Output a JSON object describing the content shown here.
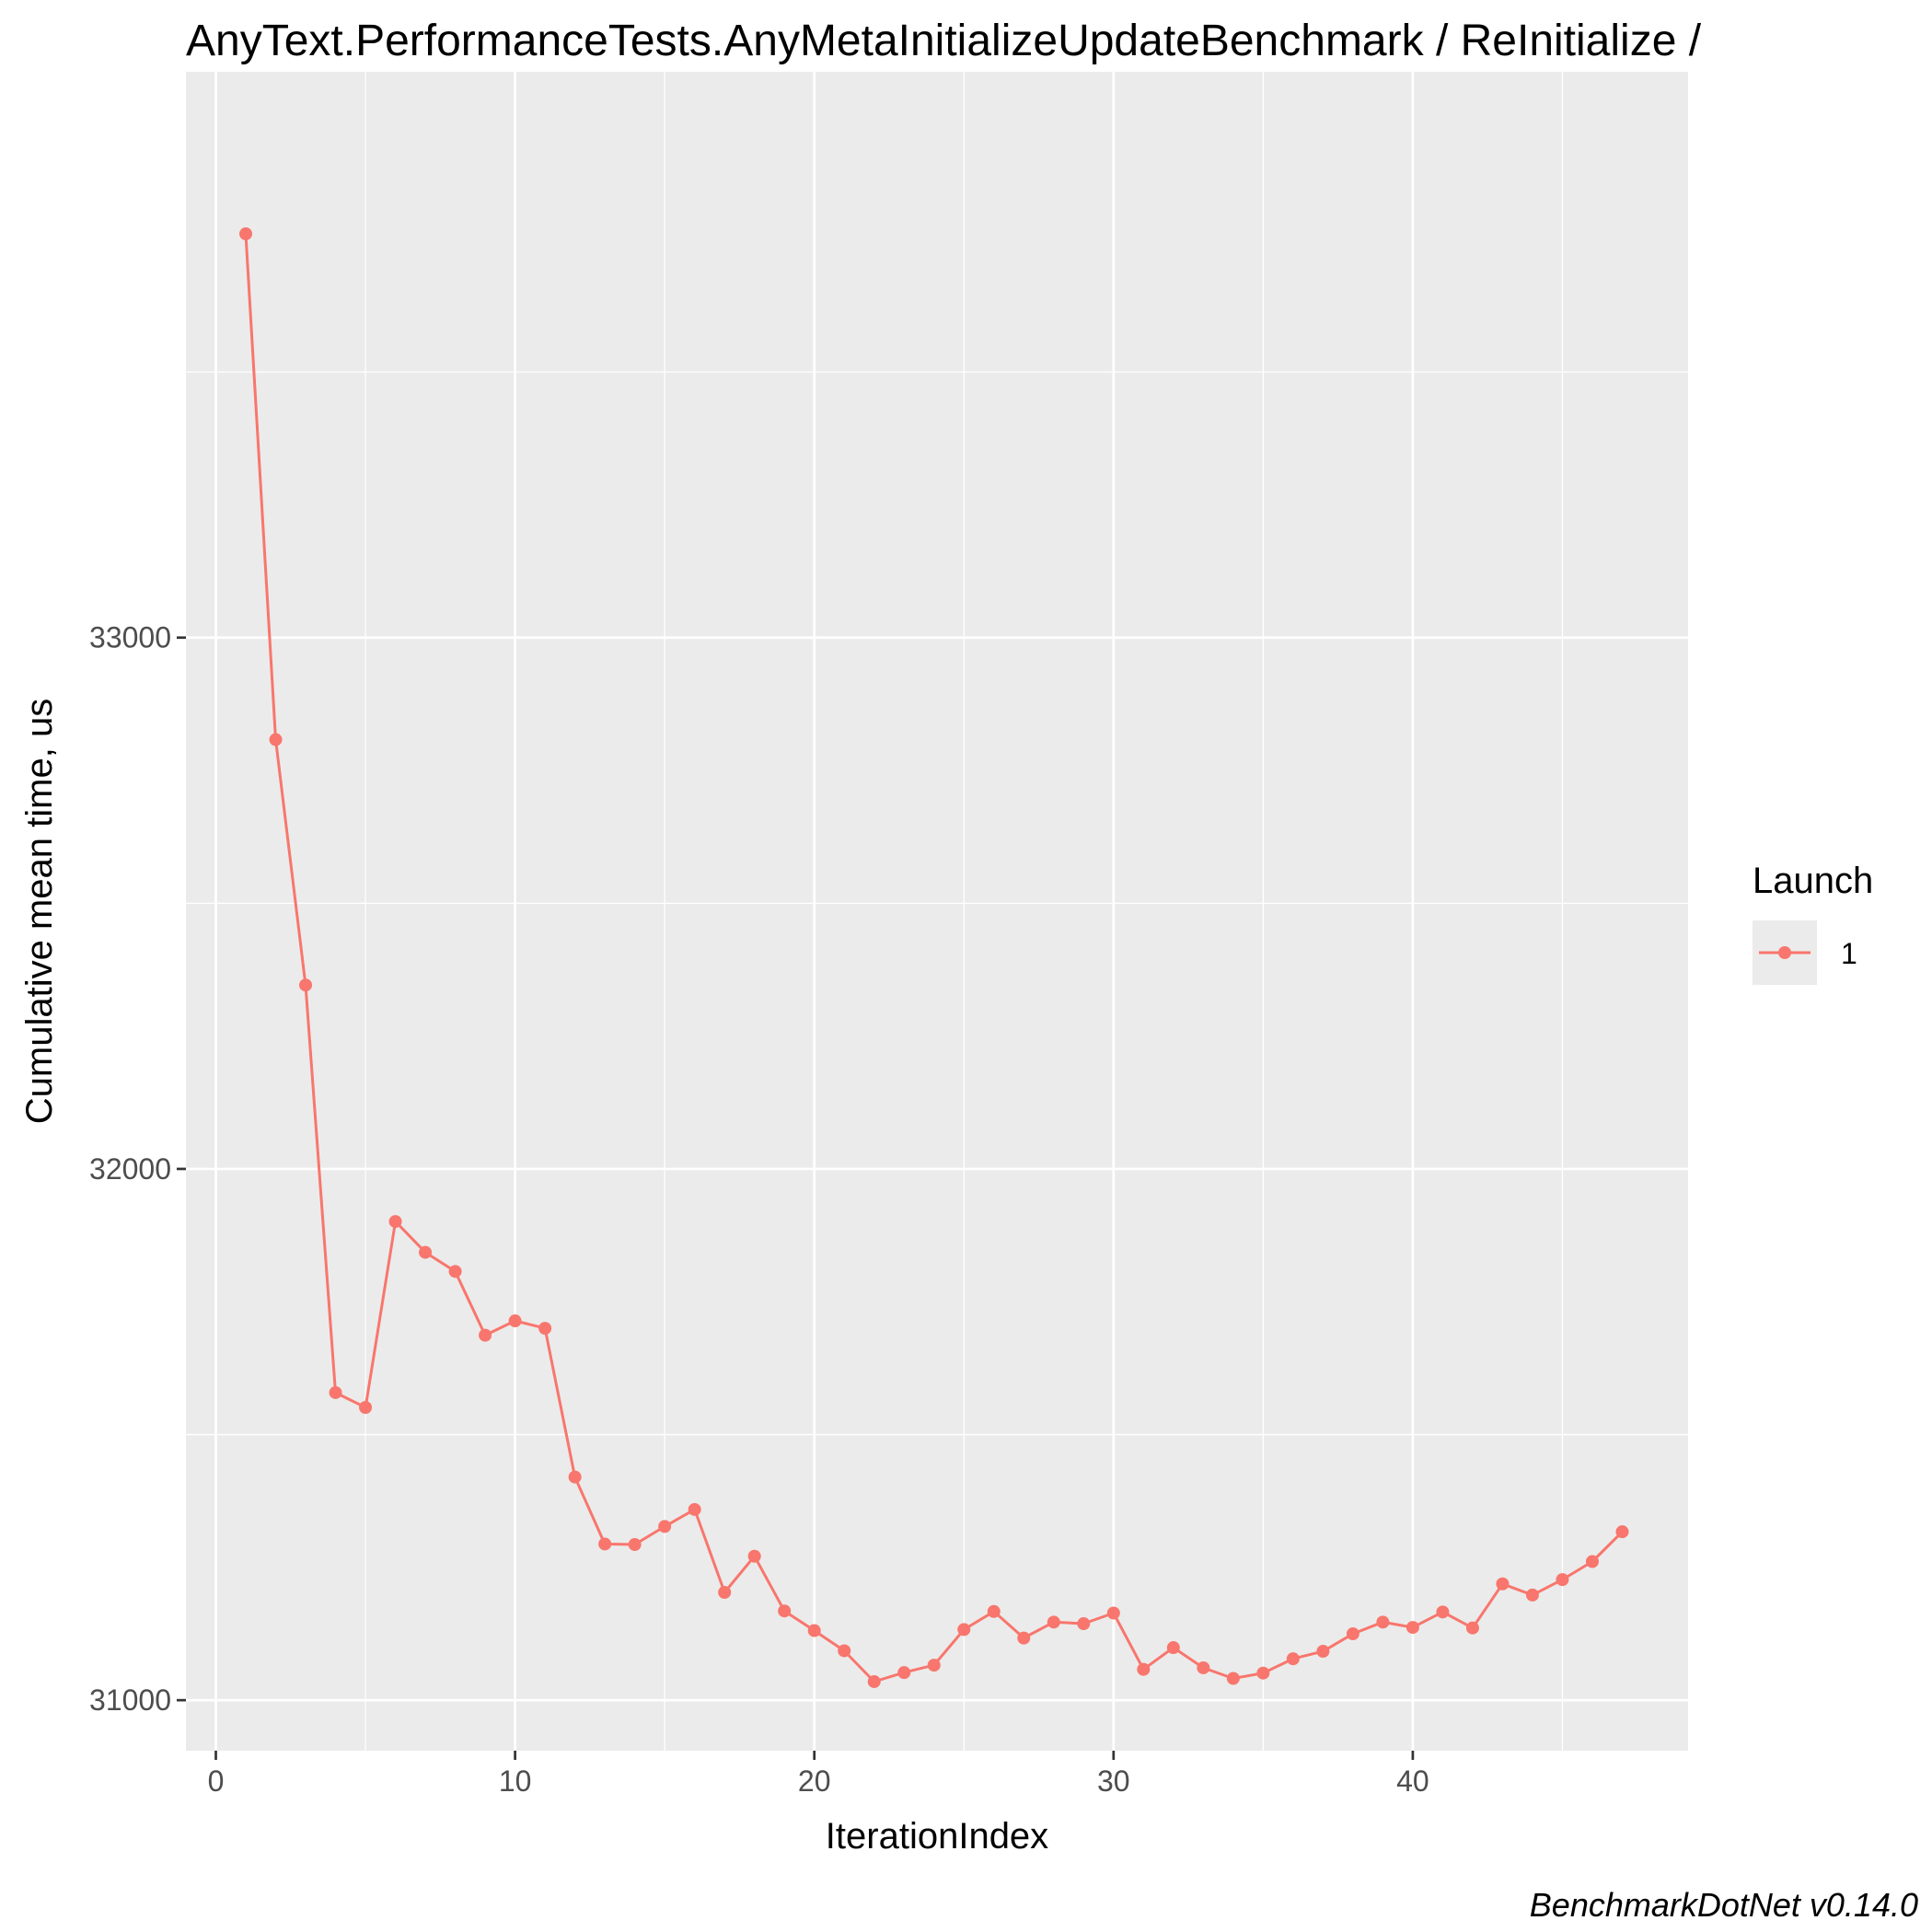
{
  "colors": {
    "panel_bg": "#ebebeb",
    "grid_major": "#ffffff",
    "series": "#f8766d",
    "tick": "#333333"
  },
  "title": "AnyText.PerformanceTests.AnyMetaInitializeUpdateBenchmark / ReInitialize /",
  "caption": "BenchmarkDotNet v0.14.0",
  "legend": {
    "title": "Launch",
    "items": [
      {
        "label": "1"
      }
    ]
  },
  "chart_data": {
    "type": "line",
    "title": "AnyText.PerformanceTests.AnyMetaInitializeUpdateBenchmark / ReInitialize /",
    "xlabel": "IterationIndex",
    "ylabel": "Cumulative mean time, us",
    "xlim": [
      -1,
      49.2
    ],
    "ylim": [
      30905,
      34065
    ],
    "x_ticks": [
      0,
      10,
      20,
      30,
      40
    ],
    "y_ticks": [
      31000,
      32000,
      33000
    ],
    "grid": true,
    "legend_position": "right",
    "series": [
      {
        "name": "1",
        "x": [
          1,
          2,
          3,
          4,
          5,
          6,
          7,
          8,
          9,
          10,
          11,
          12,
          13,
          14,
          15,
          16,
          17,
          18,
          19,
          20,
          21,
          22,
          23,
          24,
          25,
          26,
          27,
          28,
          29,
          30,
          31,
          32,
          33,
          34,
          35,
          36,
          37,
          38,
          39,
          40,
          41,
          42,
          43,
          44,
          45,
          46,
          47
        ],
        "y": [
          33760,
          32808,
          32346,
          31579,
          31551,
          31901,
          31843,
          31807,
          31687,
          31714,
          31700,
          31420,
          31294,
          31293,
          31327,
          31359,
          31203,
          31271,
          31168,
          31131,
          31093,
          31035,
          31052,
          31066,
          31133,
          31167,
          31117,
          31147,
          31144,
          31164,
          31058,
          31099,
          31061,
          31041,
          31051,
          31078,
          31092,
          31125,
          31147,
          31137,
          31166,
          31136,
          31219,
          31198,
          31227,
          31261,
          31317
        ]
      }
    ]
  }
}
